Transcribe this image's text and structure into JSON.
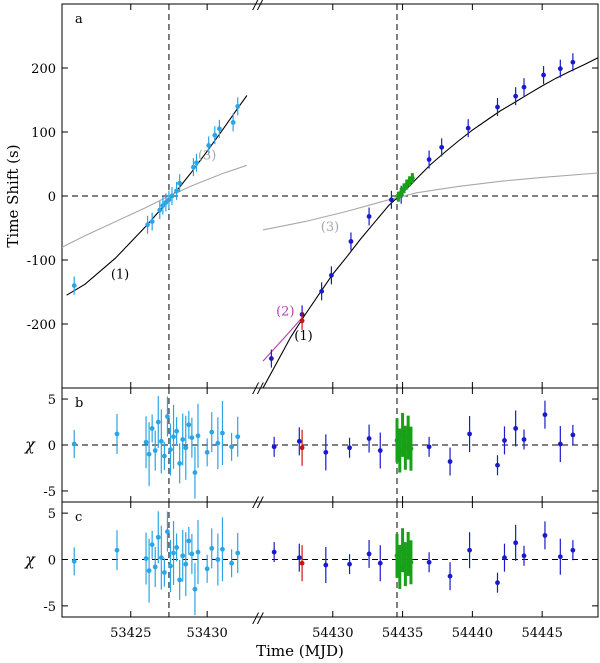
{
  "chart_data": [
    {
      "type": "scatter",
      "panel_label": "a",
      "ylabel": "Time Shift (s)",
      "ylim": [
        -300,
        300
      ],
      "y_ticks": [
        200,
        100,
        0,
        -100,
        -200
      ],
      "x_segments": [
        [
          53420.5,
          53433
        ],
        [
          54425,
          54449
        ]
      ],
      "reference_lines": {
        "vertical": [
          53427.5,
          54434.6
        ],
        "horizontal": [
          0
        ]
      },
      "curve_labels": [
        "(1)",
        "(2)",
        "(3)"
      ],
      "colors": {
        "seg1": "#2aa5e6",
        "seg2_blue": "#1a1acc",
        "red": "#d01010",
        "green": "#18a018",
        "grey": "#a8a8a8",
        "magenta": "#b040b0",
        "black": "#000000"
      },
      "series": [
        {
          "label": "(1)",
          "kind": "curve",
          "segment": 1,
          "x": [
            53420.8,
            53422.0,
            53424.0,
            53426.0,
            53427.0,
            53427.5,
            53428.0,
            53429.0,
            53430.0,
            53431.0,
            53432.0,
            53432.6
          ],
          "y": [
            -155,
            -138,
            -97,
            -47,
            -20,
            -5,
            8,
            38,
            70,
            103,
            137,
            157
          ]
        },
        {
          "label": "(3)",
          "kind": "curve",
          "segment": 1,
          "x": [
            53420.5,
            53422.0,
            53424.0,
            53426.0,
            53427.5,
            53429.0,
            53431.0,
            53432.6
          ],
          "y": [
            -80,
            -62,
            -40,
            -18,
            0,
            16,
            35,
            48
          ]
        },
        {
          "label": "(1)",
          "kind": "curve",
          "segment": 2,
          "x": [
            54425.0,
            54426.0,
            54427.0,
            54428.0,
            54429.0,
            54430.0,
            54431.0,
            54432.0,
            54433.0,
            54434.0,
            54435.0,
            54436.0,
            54437.0,
            54438.0,
            54439.0,
            54440.0,
            54441.0,
            54442.0,
            54443.0,
            54444.0,
            54445.0,
            54446.0,
            54447.0,
            54448.0,
            54449.0
          ],
          "y": [
            -300,
            -260,
            -220,
            -186,
            -154,
            -122,
            -95,
            -67,
            -41,
            -15,
            5,
            27,
            49,
            68,
            86,
            103,
            118,
            133,
            146,
            159,
            172,
            184,
            195,
            205,
            216
          ]
        },
        {
          "label": "(2)",
          "kind": "curve",
          "segment": 2,
          "x": [
            54425.0,
            54426.0,
            54427.0,
            54427.8
          ],
          "y": [
            -258,
            -234,
            -210,
            -190
          ]
        },
        {
          "label": "(3)",
          "kind": "curve",
          "segment": 2,
          "x": [
            54425.0,
            54428.0,
            54431.0,
            54434.0,
            54436.0,
            54439.0,
            54442.0,
            54445.0,
            54449.0
          ],
          "y": [
            -53,
            -40,
            -24,
            -6,
            5,
            15,
            23,
            29,
            36
          ]
        },
        {
          "kind": "points",
          "segment": 1,
          "color": "seg1",
          "x": [
            53421.3,
            53426.1,
            53426.4,
            53426.9,
            53427.1,
            53427.3,
            53427.5,
            53427.7,
            53428.0,
            53428.2,
            53429.1,
            53429.3,
            53430.1,
            53430.5,
            53430.8,
            53431.7,
            53432.0
          ],
          "y": [
            -140,
            -45,
            -40,
            -22,
            -15,
            -10,
            -6,
            0,
            8,
            20,
            45,
            52,
            79,
            95,
            105,
            115,
            140
          ]
        },
        {
          "kind": "points",
          "segment": 2,
          "color": "seg2_blue",
          "x": [
            54425.6,
            54427.8,
            54429.2,
            54429.9,
            54431.3,
            54432.6,
            54434.2,
            54434.9,
            54436.9,
            54437.8,
            54439.7,
            54441.8,
            54443.1,
            54443.7,
            54445.1,
            54446.3,
            54447.2
          ],
          "y": [
            -254,
            -185,
            -149,
            -124,
            -71,
            -32,
            -6,
            2,
            57,
            76,
            106,
            139,
            156,
            170,
            189,
            199,
            209
          ]
        },
        {
          "kind": "points",
          "segment": 2,
          "color": "red",
          "x": [
            54427.8
          ],
          "y": [
            -195
          ]
        },
        {
          "kind": "points",
          "segment": 2,
          "color": "green",
          "x": [
            54434.7,
            54434.9,
            54435.1,
            54435.3,
            54435.5,
            54435.7
          ],
          "y": [
            -1,
            5,
            12,
            18,
            23,
            28
          ]
        }
      ]
    },
    {
      "type": "scatter",
      "panel_label": "b",
      "ylabel": "χ",
      "ylim": [
        -6.2,
        6.2
      ],
      "y_ticks": [
        5,
        0,
        -5
      ],
      "x_segments": [
        [
          53420.5,
          53433
        ],
        [
          54425,
          54449
        ]
      ],
      "reference_lines": {
        "vertical": [
          53427.5,
          54434.6
        ],
        "horizontal": [
          0
        ]
      },
      "series": [
        {
          "kind": "points",
          "segment": 1,
          "color": "seg1",
          "x": [
            53421.3,
            53424.1,
            53426.0,
            53426.2,
            53426.4,
            53426.6,
            53426.8,
            53427.0,
            53427.2,
            53427.4,
            53427.6,
            53427.8,
            53428.0,
            53428.2,
            53428.4,
            53428.6,
            53428.8,
            53429.0,
            53429.2,
            53429.4,
            53430.0,
            53430.3,
            53430.7,
            53431.0,
            53431.6,
            53432.0
          ],
          "y": [
            0.1,
            1.2,
            0.3,
            -1.0,
            1.8,
            -0.6,
            2.5,
            0.4,
            -1.2,
            3.1,
            -0.5,
            0.9,
            1.5,
            -2.0,
            0.6,
            -0.3,
            2.2,
            0.8,
            -3.0,
            1.0,
            -0.8,
            1.4,
            0.2,
            1.3,
            -0.2,
            0.9
          ]
        },
        {
          "kind": "points",
          "segment": 2,
          "color": "seg2_blue",
          "x": [
            54425.8,
            54427.6,
            54429.5,
            54431.2,
            54432.6,
            54433.4,
            54436.9,
            54438.4,
            54439.8,
            54441.8,
            54442.3,
            54443.1,
            54443.7,
            54445.2,
            54446.3,
            54447.2
          ],
          "y": [
            -0.2,
            0.4,
            -0.8,
            -0.3,
            0.7,
            -0.6,
            -0.2,
            -1.8,
            1.2,
            -2.2,
            0.5,
            1.8,
            0.6,
            3.3,
            0.1,
            1.1
          ]
        },
        {
          "kind": "points",
          "segment": 2,
          "color": "red",
          "x": [
            54427.8
          ],
          "y": [
            -0.3
          ]
        },
        {
          "kind": "points",
          "segment": 2,
          "color": "green",
          "x": [
            54434.6,
            54434.8,
            54435.0,
            54435.2,
            54435.4,
            54435.6
          ],
          "y": [
            0.5,
            -0.6,
            1.1,
            -0.3,
            0.8,
            -0.4
          ]
        }
      ]
    },
    {
      "type": "scatter",
      "panel_label": "c",
      "ylabel": "χ",
      "ylim": [
        -6.2,
        6.2
      ],
      "y_ticks": [
        5,
        0,
        -5
      ],
      "x_segments": [
        [
          53420.5,
          53433
        ],
        [
          54425,
          54449
        ]
      ],
      "x_ticks": [
        53425,
        53430,
        54430,
        54435,
        54440,
        54445
      ],
      "x_tick_labels": [
        "53425",
        "53430",
        "54430",
        "54435",
        "54440",
        "54445"
      ],
      "xlabel": "Time (MJD)",
      "reference_lines": {
        "vertical": [
          53427.5,
          54434.6
        ],
        "horizontal": [
          0
        ]
      },
      "series": [
        {
          "kind": "points",
          "segment": 1,
          "color": "seg1",
          "x": [
            53421.3,
            53424.1,
            53426.0,
            53426.2,
            53426.4,
            53426.6,
            53426.8,
            53427.0,
            53427.2,
            53427.4,
            53427.6,
            53427.8,
            53428.0,
            53428.2,
            53428.4,
            53428.6,
            53428.8,
            53429.0,
            53429.2,
            53429.4,
            53430.0,
            53430.3,
            53430.7,
            53431.0,
            53431.6,
            53432.0
          ],
          "y": [
            -0.2,
            1.0,
            0.1,
            -1.2,
            1.6,
            -0.8,
            2.4,
            0.2,
            -1.4,
            3.0,
            -0.7,
            0.7,
            1.3,
            -2.2,
            0.4,
            -0.5,
            2.0,
            0.6,
            -3.2,
            0.8,
            -1.0,
            1.2,
            0.0,
            1.1,
            -0.4,
            0.7
          ]
        },
        {
          "kind": "points",
          "segment": 2,
          "color": "seg2_blue",
          "x": [
            54425.8,
            54427.6,
            54429.5,
            54431.2,
            54432.6,
            54433.4,
            54436.9,
            54438.4,
            54439.8,
            54441.8,
            54442.3,
            54443.1,
            54443.7,
            54445.2,
            54446.3,
            54447.2
          ],
          "y": [
            0.8,
            0.2,
            -0.6,
            -0.5,
            0.6,
            -0.4,
            -0.3,
            -1.8,
            1.0,
            -2.5,
            0.2,
            1.8,
            0.4,
            2.6,
            0.3,
            1.0
          ]
        },
        {
          "kind": "points",
          "segment": 2,
          "color": "red",
          "x": [
            54427.8
          ],
          "y": [
            -0.4
          ]
        },
        {
          "kind": "points",
          "segment": 2,
          "color": "green",
          "x": [
            54434.6,
            54434.8,
            54435.0,
            54435.2,
            54435.4,
            54435.6
          ],
          "y": [
            0.4,
            -0.8,
            1.0,
            -0.5,
            0.6,
            -0.3
          ]
        }
      ]
    }
  ]
}
